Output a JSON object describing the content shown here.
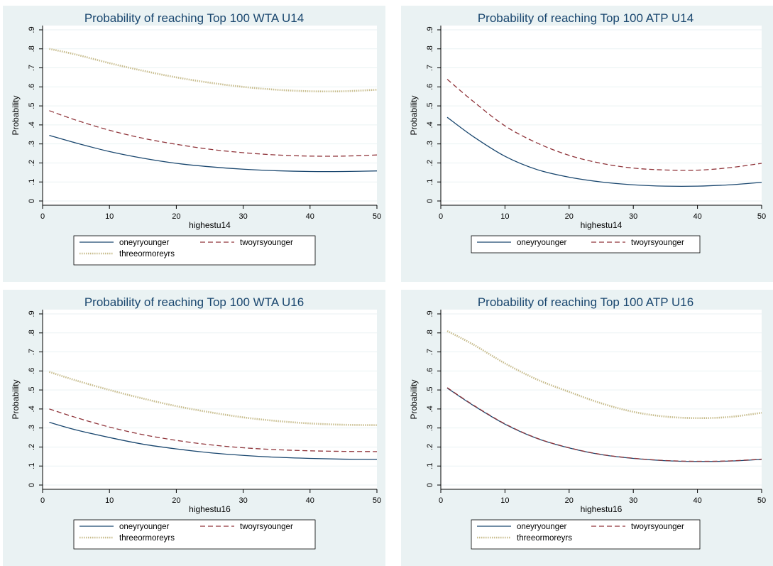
{
  "chart_data": [
    {
      "type": "line",
      "title": "Probability of reaching Top 100 WTA U14",
      "xlabel": "highestu14",
      "ylabel": "Probability",
      "xlim": [
        0,
        50
      ],
      "ylim": [
        0,
        0.9
      ],
      "xticks": [
        "0",
        "10",
        "20",
        "30",
        "40",
        "50"
      ],
      "yticks": [
        "0",
        ".1",
        ".2",
        ".3",
        ".4",
        ".5",
        ".6",
        ".7",
        ".8",
        ".9"
      ],
      "grid": true,
      "legend_position": "bottom",
      "x": [
        1,
        5,
        10,
        15,
        20,
        25,
        30,
        35,
        40,
        45,
        50
      ],
      "series": [
        {
          "name": "oneyryounger",
          "style": "solid",
          "color": "#1a476f",
          "values": [
            0.345,
            0.305,
            0.26,
            0.225,
            0.198,
            0.18,
            0.167,
            0.159,
            0.155,
            0.155,
            0.158
          ]
        },
        {
          "name": "twoyrsyounger",
          "style": "dashed",
          "color": "#90353b",
          "values": [
            0.475,
            0.425,
            0.372,
            0.33,
            0.298,
            0.272,
            0.254,
            0.242,
            0.236,
            0.236,
            0.242
          ]
        },
        {
          "name": "threeormoreyrs",
          "style": "dotted",
          "color": "#c8bd8e",
          "values": [
            0.8,
            0.77,
            0.725,
            0.685,
            0.65,
            0.622,
            0.6,
            0.585,
            0.577,
            0.577,
            0.585
          ]
        }
      ]
    },
    {
      "type": "line",
      "title": "Probability of reaching Top 100 ATP U14",
      "xlabel": "highestu14",
      "ylabel": "Probability",
      "xlim": [
        0,
        50
      ],
      "ylim": [
        0,
        0.9
      ],
      "xticks": [
        "0",
        "10",
        "20",
        "30",
        "40",
        "50"
      ],
      "yticks": [
        "0",
        ".1",
        ".2",
        ".3",
        ".4",
        ".5",
        ".6",
        ".7",
        ".8",
        ".9"
      ],
      "grid": true,
      "legend_position": "bottom",
      "x": [
        1,
        5,
        10,
        15,
        20,
        25,
        30,
        35,
        40,
        45,
        50
      ],
      "series": [
        {
          "name": "oneyryounger",
          "style": "solid",
          "color": "#1a476f",
          "values": [
            0.44,
            0.34,
            0.235,
            0.165,
            0.125,
            0.1,
            0.085,
            0.078,
            0.078,
            0.085,
            0.098
          ]
        },
        {
          "name": "twoyrsyounger",
          "style": "dashed",
          "color": "#90353b",
          "values": [
            0.64,
            0.525,
            0.395,
            0.305,
            0.24,
            0.198,
            0.173,
            0.163,
            0.162,
            0.175,
            0.198
          ]
        }
      ]
    },
    {
      "type": "line",
      "title": "Probability of reaching Top 100 WTA U16",
      "xlabel": "highestu16",
      "ylabel": "Probability",
      "xlim": [
        0,
        50
      ],
      "ylim": [
        0,
        0.9
      ],
      "xticks": [
        "0",
        "10",
        "20",
        "30",
        "40",
        "50"
      ],
      "yticks": [
        "0",
        ".1",
        ".2",
        ".3",
        ".4",
        ".5",
        ".6",
        ".7",
        ".8",
        ".9"
      ],
      "grid": true,
      "legend_position": "bottom",
      "x": [
        1,
        5,
        10,
        15,
        20,
        25,
        30,
        35,
        40,
        45,
        50
      ],
      "series": [
        {
          "name": "oneyryounger",
          "style": "solid",
          "color": "#1a476f",
          "values": [
            0.33,
            0.29,
            0.25,
            0.215,
            0.19,
            0.17,
            0.156,
            0.146,
            0.14,
            0.136,
            0.135
          ]
        },
        {
          "name": "twoyrsyounger",
          "style": "dashed",
          "color": "#90353b",
          "values": [
            0.4,
            0.355,
            0.305,
            0.265,
            0.235,
            0.212,
            0.196,
            0.186,
            0.18,
            0.177,
            0.176
          ]
        },
        {
          "name": "threeormoreyrs",
          "style": "dotted",
          "color": "#c8bd8e",
          "values": [
            0.595,
            0.55,
            0.5,
            0.455,
            0.415,
            0.383,
            0.356,
            0.337,
            0.324,
            0.317,
            0.315
          ]
        }
      ]
    },
    {
      "type": "line",
      "title": "Probability of reaching Top 100 ATP U16",
      "xlabel": "highestu16",
      "ylabel": "Probability",
      "xlim": [
        0,
        50
      ],
      "ylim": [
        0,
        0.9
      ],
      "xticks": [
        "0",
        "10",
        "20",
        "30",
        "40",
        "50"
      ],
      "yticks": [
        "0",
        ".1",
        ".2",
        ".3",
        ".4",
        ".5",
        ".6",
        ".7",
        ".8",
        ".9"
      ],
      "grid": true,
      "legend_position": "bottom",
      "x": [
        1,
        5,
        10,
        15,
        20,
        25,
        30,
        35,
        40,
        45,
        50
      ],
      "series": [
        {
          "name": "oneyryounger",
          "style": "solid",
          "color": "#1a476f",
          "values": [
            0.51,
            0.42,
            0.32,
            0.245,
            0.195,
            0.16,
            0.14,
            0.128,
            0.124,
            0.126,
            0.135
          ]
        },
        {
          "name": "twoyrsyounger",
          "style": "dashed",
          "color": "#90353b",
          "values": [
            0.512,
            0.422,
            0.322,
            0.246,
            0.196,
            0.161,
            0.141,
            0.129,
            0.125,
            0.127,
            0.136
          ]
        },
        {
          "name": "threeormoreyrs",
          "style": "dotted",
          "color": "#c8bd8e",
          "values": [
            0.81,
            0.74,
            0.64,
            0.555,
            0.49,
            0.43,
            0.385,
            0.36,
            0.352,
            0.358,
            0.38
          ]
        }
      ]
    }
  ]
}
